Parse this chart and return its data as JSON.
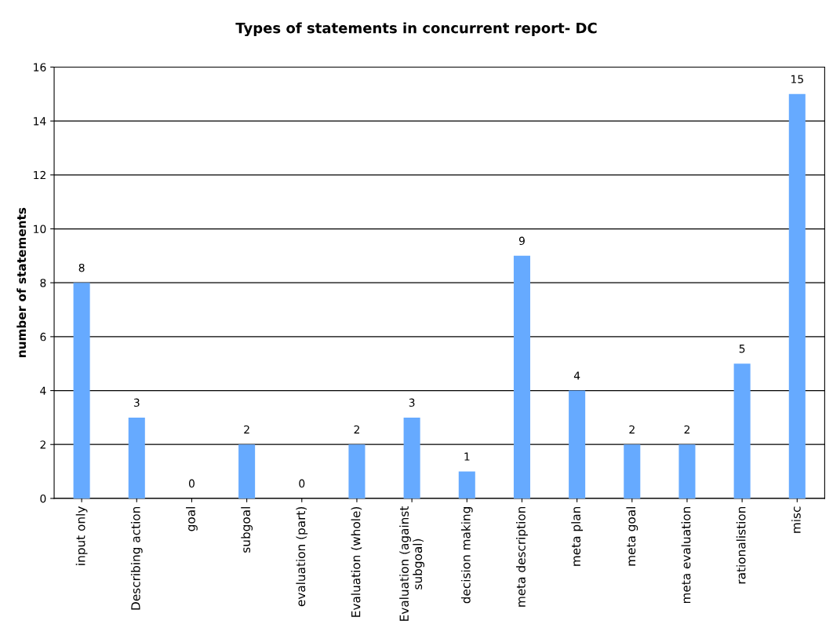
{
  "chart_data": {
    "type": "bar",
    "title": "Types of statements in concurrent report- DC",
    "ylabel": "number of statements",
    "categories": [
      "input only",
      "Describing action",
      "goal",
      "subgoal",
      "evaluation (part)",
      "Evaluation (whole)",
      "Evaluation (against subgoal)",
      "decision making",
      "meta description",
      "meta plan",
      "meta goal",
      "meta evaluation",
      "rationalistion",
      "misc"
    ],
    "values": [
      8,
      3,
      0,
      2,
      0,
      2,
      3,
      1,
      9,
      4,
      2,
      2,
      5,
      15
    ],
    "color": "#66aaff",
    "ylim": [
      0,
      16
    ],
    "yticks": [
      0,
      2,
      4,
      6,
      8,
      10,
      12,
      14,
      16
    ],
    "grid": "y",
    "data_labels": true
  }
}
